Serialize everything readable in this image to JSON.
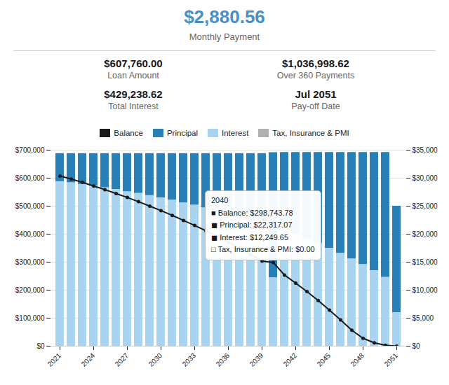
{
  "chart_data": {
    "type": "bar",
    "stacked": true,
    "grid": true,
    "legend": "top",
    "annotations": [
      {
        "text": "$2,880.56",
        "color": "#4a90c4"
      },
      {
        "text": "Monthly Payment"
      },
      {
        "text": "$607,760.00"
      },
      {
        "text": "Loan Amount"
      },
      {
        "text": "$1,036,998.62"
      },
      {
        "text": "Over 360 Payments"
      },
      {
        "text": "$429,238.62"
      },
      {
        "text": "Total Interest"
      },
      {
        "text": "Jul 2051"
      },
      {
        "text": "Pay-off Date"
      },
      {
        "text": "2040\n■ Balance: $298,743.78\n◼ Principal: $22,317.07\n◼ Interest: $12,249.65\n□ Tax, Insurance & PMI: $0.00"
      }
    ],
    "categories": [
      "2021",
      null,
      null,
      "2024",
      null,
      null,
      "2027",
      null,
      null,
      "2030",
      null,
      null,
      "2033",
      null,
      null,
      "2036",
      null,
      null,
      "2039",
      null,
      null,
      "2042",
      null,
      null,
      "2045",
      null,
      null,
      "2048",
      null,
      null,
      "2051"
    ],
    "series": [
      {
        "name": "Balance",
        "type": "line",
        "marker": "circle",
        "color": "#1a1a1a",
        "values": [
          607760,
          597000,
          585000,
          572000,
          559000,
          545000,
          531000,
          516000,
          500000,
          484000,
          467000,
          449000,
          431000,
          412000,
          392000,
          371000,
          350000,
          327000,
          304000,
          298744,
          254000,
          225000,
          195000,
          163000,
          129000,
          94000,
          57000,
          28000,
          12000,
          3000,
          0
        ]
      },
      {
        "name": "Principal",
        "type": "bar",
        "axis": "y2",
        "color": "#2980b9",
        "values": [
          5000,
          5200,
          5500,
          5800,
          6100,
          6400,
          6800,
          7100,
          7500,
          7900,
          8300,
          8800,
          9200,
          9700,
          10200,
          10800,
          11300,
          11900,
          12500,
          22317,
          13900,
          14600,
          15400,
          16200,
          17100,
          18000,
          19000,
          20000,
          21100,
          22300,
          19000
        ]
      },
      {
        "name": "Interest",
        "type": "bar",
        "axis": "y2",
        "color": "#a8d4f0",
        "values": [
          29400,
          29200,
          28900,
          28600,
          28300,
          28000,
          27600,
          27300,
          26900,
          26500,
          26100,
          25600,
          25200,
          24700,
          24200,
          23600,
          23100,
          22500,
          21900,
          12250,
          20700,
          20000,
          19200,
          18400,
          17500,
          16600,
          15600,
          14600,
          13500,
          12300,
          6000
        ]
      },
      {
        "name": "Tax, Insurance & PMI",
        "type": "bar",
        "axis": "y2",
        "color": "#b0b0b0",
        "values": [
          0,
          0,
          0,
          0,
          0,
          0,
          0,
          0,
          0,
          0,
          0,
          0,
          0,
          0,
          0,
          0,
          0,
          0,
          0,
          0,
          0,
          0,
          0,
          0,
          0,
          0,
          0,
          0,
          0,
          0,
          0
        ]
      }
    ],
    "ylim": [
      0,
      700000
    ],
    "yticks": [
      {
        "value": 0,
        "label": "$0"
      },
      {
        "value": 100000,
        "label": "$100,000"
      },
      {
        "value": 200000,
        "label": "$200,000"
      },
      {
        "value": 300000,
        "label": "$300,000"
      },
      {
        "value": 400000,
        "label": "$400,000"
      },
      {
        "value": 500000,
        "label": "$500,000"
      },
      {
        "value": 600000,
        "label": "$600,000"
      },
      {
        "value": 700000,
        "label": "$700,000"
      }
    ],
    "y2lim": [
      0,
      35000
    ],
    "y2ticks": [
      {
        "value": 0,
        "label": "$0"
      },
      {
        "value": 5000,
        "label": "$5,000"
      },
      {
        "value": 10000,
        "label": "$10,000"
      },
      {
        "value": 15000,
        "label": "$15,000"
      },
      {
        "value": 20000,
        "label": "$20,000"
      },
      {
        "value": 25000,
        "label": "$25,000"
      },
      {
        "value": 30000,
        "label": "$30,000"
      },
      {
        "value": 35000,
        "label": "$35,000"
      }
    ]
  }
}
